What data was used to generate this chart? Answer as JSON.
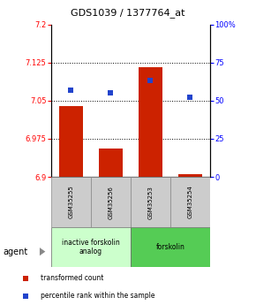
{
  "title": "GDS1039 / 1377764_at",
  "samples": [
    "GSM35255",
    "GSM35256",
    "GSM35253",
    "GSM35254"
  ],
  "bar_values": [
    7.04,
    6.955,
    7.115,
    6.905
  ],
  "bar_base": 6.9,
  "blue_values": [
    57,
    55,
    63,
    52
  ],
  "ylim_left": [
    6.9,
    7.2
  ],
  "ylim_right": [
    0,
    100
  ],
  "yticks_left": [
    6.9,
    6.975,
    7.05,
    7.125,
    7.2
  ],
  "yticks_right": [
    0,
    25,
    50,
    75,
    100
  ],
  "hlines": [
    7.125,
    7.05,
    6.975
  ],
  "bar_color": "#cc2200",
  "blue_color": "#2244cc",
  "groups": [
    {
      "label": "inactive forskolin\nanalog",
      "color": "#ccffcc",
      "samples": [
        0,
        1
      ]
    },
    {
      "label": "forskolin",
      "color": "#55cc55",
      "samples": [
        2,
        3
      ]
    }
  ],
  "legend_red": "transformed count",
  "legend_blue": "percentile rank within the sample",
  "agent_label": "agent",
  "bar_width": 0.6,
  "blue_marker_size": 5,
  "tick_fontsize": 6,
  "title_fontsize": 8
}
